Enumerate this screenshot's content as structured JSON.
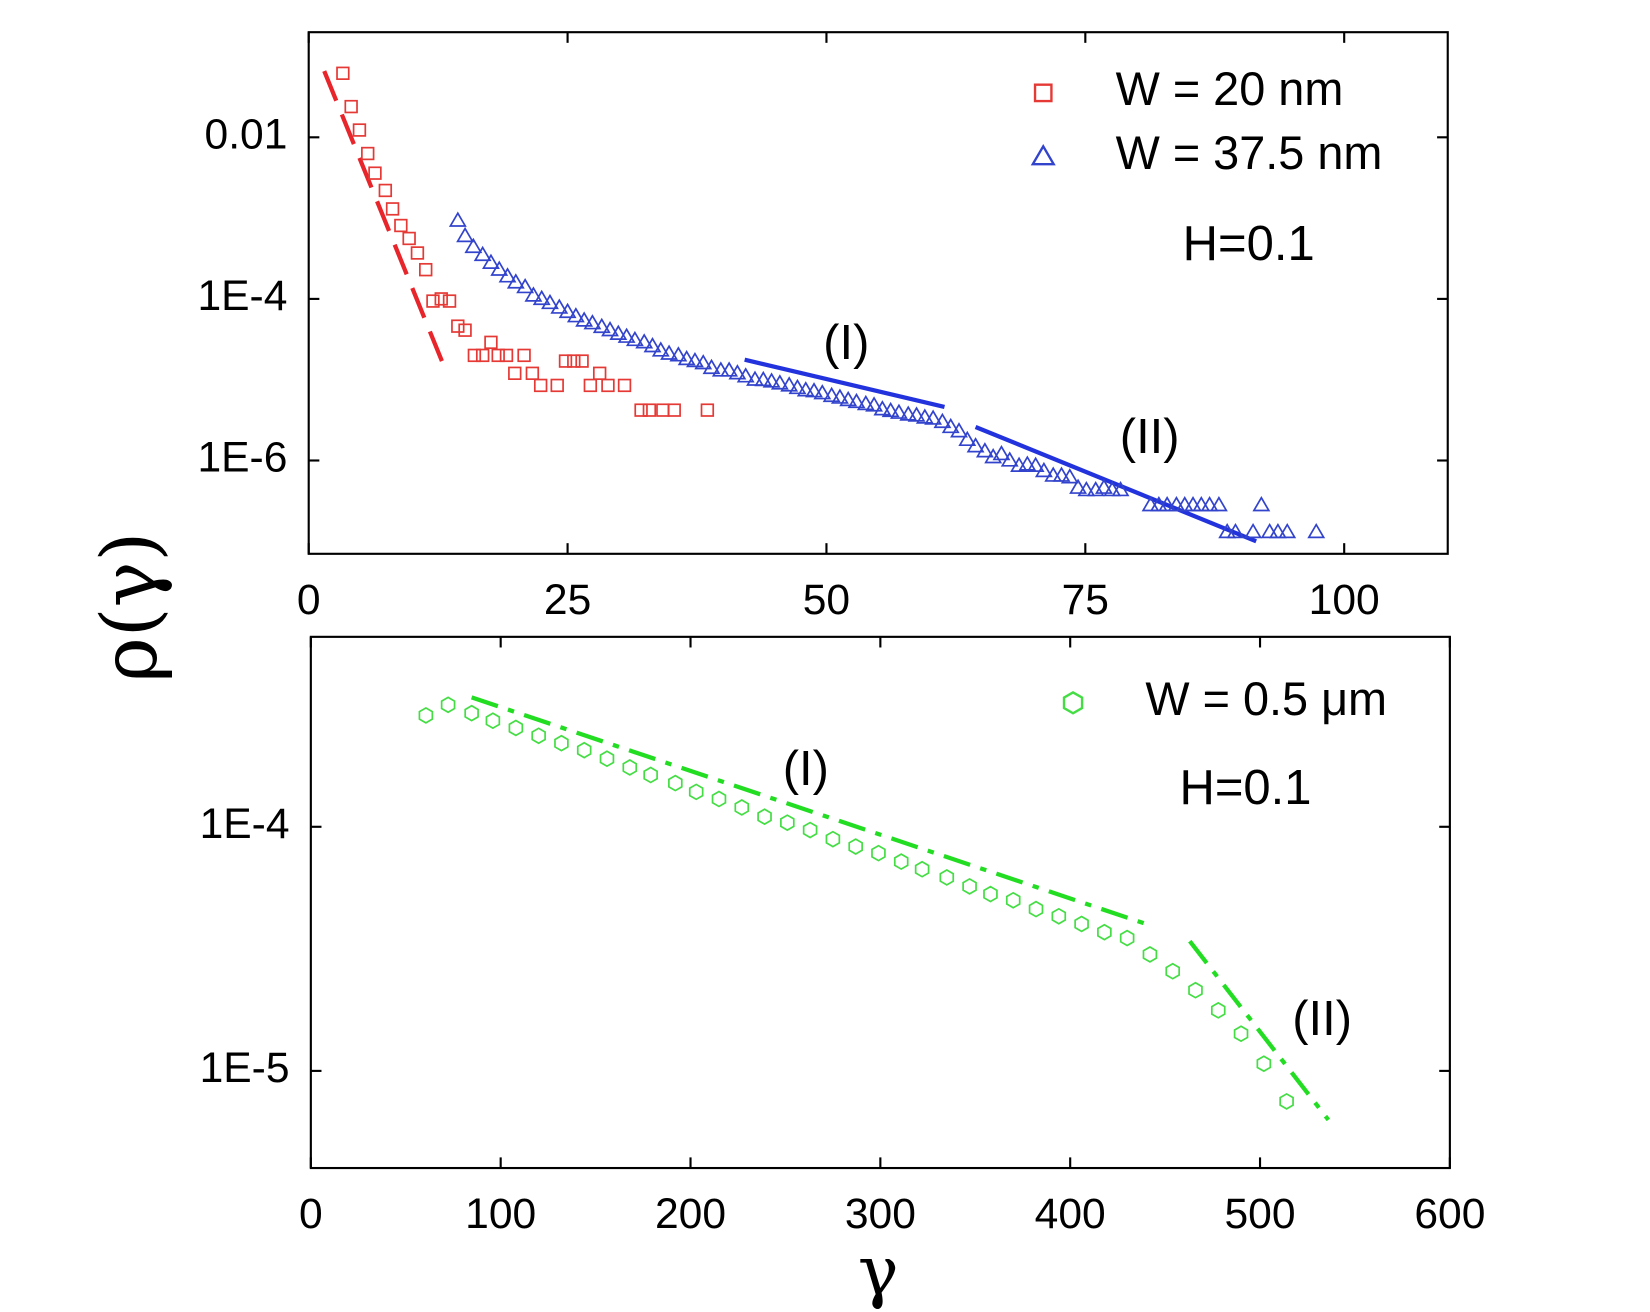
{
  "chart_data": [
    {
      "type": "scatter",
      "ylabel": "ρ(γ)",
      "yscale": "log",
      "xlim": [
        0,
        110
      ],
      "ylim": [
        7e-08,
        0.2
      ],
      "xticks": [
        0,
        25,
        50,
        75,
        100
      ],
      "yticks": [
        0.01,
        {
          "value": 0.0001,
          "label": "1E-4"
        },
        {
          "value": 1e-06,
          "label": "1E-6"
        }
      ],
      "legend": "upper right",
      "series": [
        {
          "name": "W = 20 nm",
          "color": "#e53935",
          "marker": "square",
          "x": [
            3.3,
            4.1,
            4.9,
            5.7,
            6.4,
            7.4,
            8.1,
            8.9,
            9.7,
            10.5,
            11.3,
            12.0,
            12.8,
            13.6,
            14.4,
            15.1,
            16.0,
            16.8,
            17.6,
            18.3,
            19.1,
            19.9,
            20.8,
            21.6,
            22.4,
            24.0,
            24.8,
            25.6,
            26.4,
            27.2,
            28.1,
            28.9,
            30.5,
            32.1,
            32.9,
            34.2,
            35.3,
            38.5
          ],
          "values": [
            0.062,
            0.024,
            0.0123,
            0.0063,
            0.0036,
            0.0022,
            0.0013,
            0.00081,
            0.00056,
            0.00037,
            0.00023,
            9.4e-05,
            0.0001,
            9.4e-05,
            4.6e-05,
            4.1e-05,
            2e-05,
            2e-05,
            2.9e-05,
            2e-05,
            2e-05,
            1.2e-05,
            2e-05,
            1.2e-05,
            8.5e-06,
            8.5e-06,
            1.7e-05,
            1.7e-05,
            1.7e-05,
            8.5e-06,
            1.2e-05,
            8.5e-06,
            8.5e-06,
            4.2e-06,
            4.2e-06,
            4.2e-06,
            4.2e-06,
            4.2e-06
          ]
        },
        {
          "name": "W = 37.5 nm",
          "color": "#3344cc",
          "marker": "triangle",
          "x": [
            14.4,
            15.1,
            15.9,
            16.8,
            17.6,
            18.4,
            19.2,
            20.0,
            20.9,
            21.7,
            22.5,
            23.3,
            24.2,
            25.0,
            25.8,
            26.6,
            27.4,
            28.3,
            29.1,
            29.9,
            30.7,
            31.5,
            32.4,
            33.2,
            34.0,
            34.8,
            35.7,
            36.5,
            37.3,
            38.1,
            38.9,
            39.8,
            40.6,
            41.4,
            42.2,
            43.1,
            43.9,
            44.7,
            45.5,
            46.4,
            47.2,
            48.0,
            48.8,
            49.6,
            50.5,
            51.3,
            52.1,
            52.9,
            53.8,
            54.6,
            55.4,
            56.2,
            57.0,
            57.9,
            58.7,
            59.5,
            60.3,
            61.2,
            62.0,
            62.8,
            63.6,
            64.4,
            65.3,
            66.1,
            66.9,
            67.7,
            68.6,
            69.4,
            70.2,
            71.0,
            71.9,
            72.7,
            73.5,
            74.3,
            75.1,
            76.0,
            76.8,
            77.6,
            78.4,
            81.3,
            82.1,
            82.9,
            83.8,
            84.6,
            85.4,
            86.2,
            87.0,
            87.9,
            88.7,
            89.5,
            91.2,
            92.0,
            92.8,
            93.6,
            94.5,
            97.3
          ],
          "values": [
            0.00093,
            0.0006,
            0.00044,
            0.00035,
            0.00028,
            0.00023,
            0.00019,
            0.00016,
            0.00014,
            0.00011,
            0.0001,
            8.9e-05,
            7.8e-05,
            6.9e-05,
            6.1e-05,
            5.4e-05,
            5e-05,
            4.5e-05,
            4.1e-05,
            3.7e-05,
            3.4e-05,
            3.1e-05,
            2.9e-05,
            2.6e-05,
            2.3e-05,
            2.1e-05,
            2e-05,
            1.8e-05,
            1.7e-05,
            1.6e-05,
            1.4e-05,
            1.3e-05,
            1.3e-05,
            1.2e-05,
            1.1e-05,
            1e-05,
            9.9e-06,
            9.5e-06,
            9e-06,
            8.5e-06,
            7.9e-06,
            7.4e-06,
            7.2e-06,
            6.8e-06,
            6.3e-06,
            6e-06,
            5.6e-06,
            5.3e-06,
            5e-06,
            4.8e-06,
            4.3e-06,
            4.1e-06,
            3.9e-06,
            3.7e-06,
            3.6e-06,
            3.4e-06,
            3.3e-06,
            3e-06,
            2.6e-06,
            2.3e-06,
            1.8e-06,
            1.5e-06,
            1.3e-06,
            1.1e-06,
            1.2e-06,
            1e-06,
            8.6e-07,
            8.9e-07,
            8.6e-07,
            7.4e-07,
            6.5e-07,
            6.5e-07,
            6.2e-07,
            4.6e-07,
            4.3e-07,
            4.3e-07,
            4.6e-07,
            4.3e-07,
            4.3e-07,
            2.8e-07,
            2.8e-07,
            2.8e-07,
            2.8e-07,
            2.8e-07,
            2.8e-07,
            2.8e-07,
            2.8e-07,
            2.8e-07,
            1.3e-07,
            1.3e-07,
            1.3e-07,
            2.8e-07,
            1.3e-07,
            1.3e-07,
            1.3e-07,
            1.3e-07
          ]
        }
      ],
      "fits": [
        {
          "color": "#e8252a",
          "style": "dashed",
          "x": [
            1.5,
            13.4
          ],
          "values": [
            0.066,
            1.15e-05
          ]
        },
        {
          "color": "#2233dd",
          "style": "solid",
          "x": [
            42.1,
            61.4
          ],
          "values": [
            1.77e-05,
            4.6e-06
          ]
        },
        {
          "color": "#2233dd",
          "style": "solid",
          "x": [
            64.4,
            91.5
          ],
          "values": [
            2.6e-06,
            1e-07
          ]
        }
      ],
      "annotations": [
        "(I)",
        "(II)",
        "H=0.1"
      ]
    },
    {
      "type": "scatter",
      "xlabel": "γ",
      "yscale": "log",
      "xlim": [
        0,
        600
      ],
      "ylim": [
        4e-06,
        0.0006
      ],
      "xticks": [
        0,
        100,
        200,
        300,
        400,
        500,
        600
      ],
      "yticks": [
        {
          "value": 0.0001,
          "label": "1E-4"
        },
        {
          "value": 1e-05,
          "label": "1E-5"
        }
      ],
      "legend": "upper right",
      "series": [
        {
          "name": "W = 0.5 μm",
          "color": "#44dd44",
          "marker": "hexagon",
          "x": [
            60.6,
            72.3,
            84.7,
            95.9,
            108,
            120,
            132,
            144,
            156,
            168,
            179,
            192,
            203,
            215,
            227,
            239,
            251,
            263,
            275,
            287,
            299,
            311,
            322,
            335,
            347,
            358,
            370,
            382,
            394,
            406,
            418,
            430,
            442,
            454,
            466,
            478,
            490,
            502,
            514
          ],
          "values": [
            0.000286,
            0.000316,
            0.000292,
            0.000272,
            0.000254,
            0.000236,
            0.00022,
            0.000206,
            0.00019,
            0.000175,
            0.000163,
            0.000151,
            0.000139,
            0.00013,
            0.00012,
            0.00011,
            0.000104,
            9.7e-05,
            8.9e-05,
            8.3e-05,
            7.8e-05,
            7.2e-05,
            6.7e-05,
            6.2e-05,
            5.7e-05,
            5.3e-05,
            5e-05,
            4.6e-05,
            4.3e-05,
            4e-05,
            3.7e-05,
            3.5e-05,
            3e-05,
            2.56e-05,
            2.14e-05,
            1.77e-05,
            1.42e-05,
            1.07e-05,
            7.5e-06
          ]
        }
      ],
      "fits": [
        {
          "color": "#22dd22",
          "style": "dashdot",
          "x": [
            84.7,
            442
          ],
          "values": [
            0.000339,
            3.95e-05
          ]
        },
        {
          "color": "#22dd22",
          "style": "dashdot",
          "x": [
            463,
            536
          ],
          "values": [
            3.4e-05,
            6.3e-06
          ]
        }
      ],
      "annotations": [
        "(I)",
        "(II)",
        "H=0.1"
      ]
    }
  ]
}
